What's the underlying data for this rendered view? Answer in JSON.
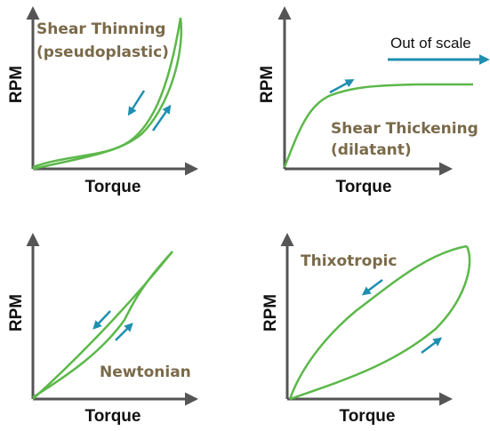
{
  "axes": {
    "x_label": "Torque",
    "y_label": "RPM"
  },
  "panels": [
    {
      "name": "shear-thinning",
      "label_lines": [
        "Shear Thinning",
        "(pseudoplastic)"
      ]
    },
    {
      "name": "shear-thickening",
      "label_lines": [
        "Shear Thickening",
        "(dilatant)"
      ],
      "note": "Out of scale"
    },
    {
      "name": "newtonian",
      "label_lines": [
        "Newtonian"
      ]
    },
    {
      "name": "thixotropic",
      "label_lines": [
        "Thixotropic"
      ]
    }
  ],
  "colors": {
    "curve": "#5cb84a",
    "arrow": "#1f8fb0",
    "axis": "#555555",
    "label": "#7a6a4a",
    "text": "#111111"
  },
  "icons": {
    "direction_arrow": "arrow-icon",
    "axis_arrowhead": "arrowhead-icon"
  }
}
